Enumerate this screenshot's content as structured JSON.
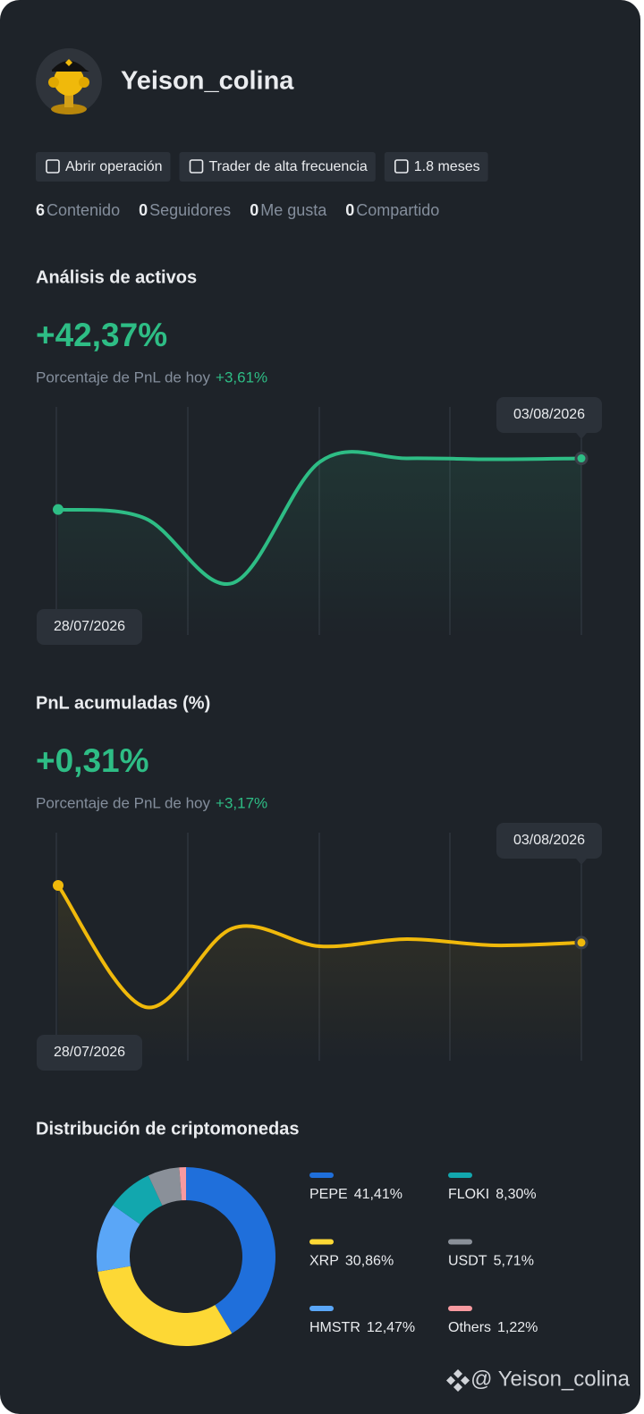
{
  "profile": {
    "name": "Yeison_colina",
    "tags": [
      "Abrir operación",
      "Trader de alta frecuencia",
      "1.8 meses"
    ],
    "stats": [
      {
        "value": 6,
        "label": "Contenido"
      },
      {
        "value": 0,
        "label": "Seguidores"
      },
      {
        "value": 0,
        "label": "Me gusta"
      },
      {
        "value": 0,
        "label": "Compartido"
      }
    ]
  },
  "chart_data": [
    {
      "type": "line",
      "title": "Análisis de activos",
      "headline": "+42,37%",
      "subtitle": "Porcentaje de PnL de hoy",
      "subtitle_value": "+3,61%",
      "categories": [
        "28/07/2026",
        null,
        null,
        null,
        null,
        null,
        "03/08/2026"
      ],
      "values": [
        0,
        -7.4,
        -61,
        39.4,
        42.4,
        41.6,
        42.37
      ],
      "ylim": [
        -104,
        85
      ],
      "color": "#2ebd85"
    },
    {
      "type": "line",
      "title": "PnL acumuladas (%)",
      "headline": "+0,31%",
      "subtitle": "Porcentaje de PnL de hoy",
      "subtitle_value": "+3,17%",
      "categories": [
        "28/07/2026",
        null,
        null,
        null,
        null,
        null,
        "03/08/2026"
      ],
      "values": [
        6.7,
        -6.9,
        1.9,
        -0.1,
        0.7,
        0.0,
        0.31
      ],
      "ylim": [
        -12.9,
        12.6
      ],
      "color": "#f0b90b"
    },
    {
      "type": "pie",
      "title": "Distribución de criptomonedas",
      "categories": [
        "PEPE",
        "XRP",
        "HMSTR",
        "FLOKI",
        "USDT",
        "Others"
      ],
      "values": [
        41.41,
        30.86,
        12.47,
        8.3,
        5.71,
        1.22
      ],
      "value_labels": [
        "41,41%",
        "30,86%",
        "12,47%",
        "8,30%",
        "5,71%",
        "1,22%"
      ],
      "colors": [
        "#1f6fdb",
        "#fdd835",
        "#5aa6f7",
        "#12a7ae",
        "#8a9099",
        "#f79aa0"
      ]
    }
  ],
  "watermark": "@ Yeison_colina"
}
